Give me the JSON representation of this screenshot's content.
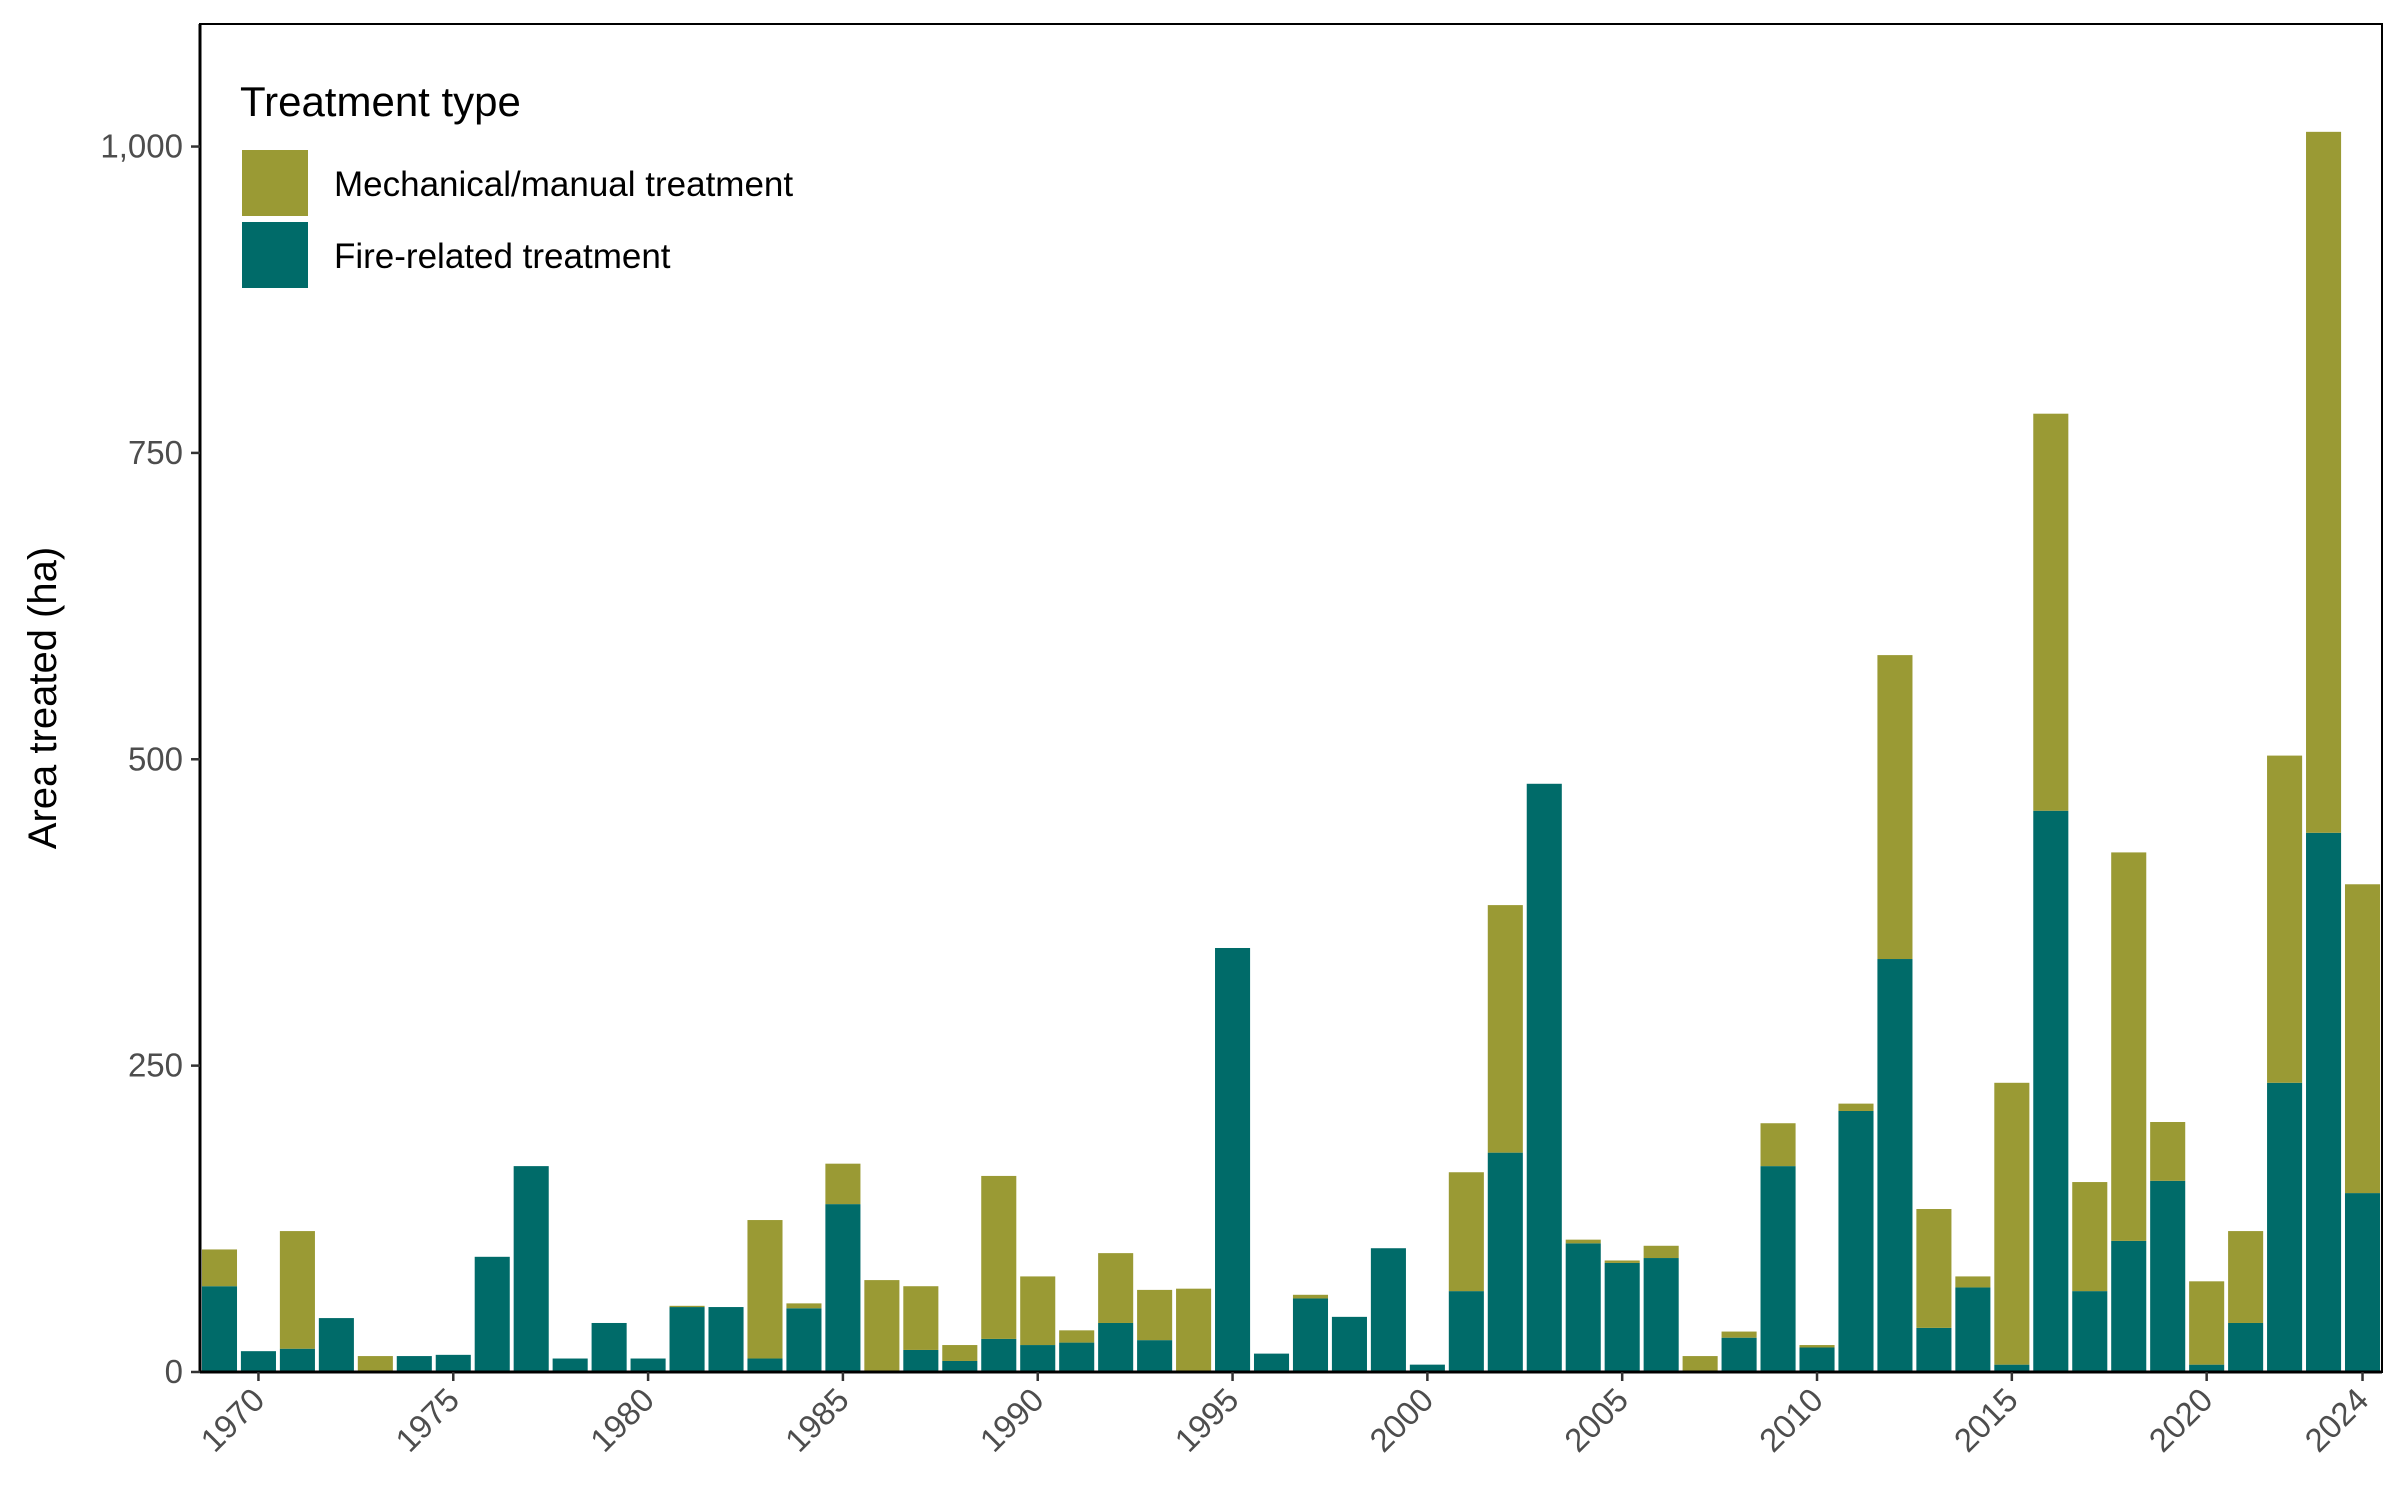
{
  "chart_data": {
    "type": "bar",
    "stacked": true,
    "title": "",
    "xlabel": "",
    "ylabel": "Area treated (ha)",
    "ylim": [
      0,
      1100
    ],
    "xlim": [
      1968.5,
      2024.5
    ],
    "y_ticks": [
      0,
      250,
      500,
      750,
      1000
    ],
    "y_tick_labels": [
      "0",
      "250",
      "500",
      "750",
      "1,000"
    ],
    "x_ticks": [
      1970,
      1975,
      1980,
      1985,
      1990,
      1995,
      2000,
      2005,
      2010,
      2015,
      2020,
      2024
    ],
    "x_tick_labels": [
      "1970",
      "1975",
      "1980",
      "1985",
      "1990",
      "1995",
      "2000",
      "2005",
      "2010",
      "2015",
      "2020",
      "2024"
    ],
    "grid": false,
    "legend": {
      "title": "Treatment type",
      "placement": "top-left",
      "entries": [
        "Mechanical/manual treatment",
        "Fire-related treatment"
      ]
    },
    "years": [
      1969,
      1970,
      1971,
      1972,
      1973,
      1974,
      1975,
      1976,
      1977,
      1978,
      1979,
      1980,
      1981,
      1982,
      1983,
      1984,
      1985,
      1986,
      1987,
      1988,
      1989,
      1990,
      1991,
      1992,
      1993,
      1994,
      1995,
      1996,
      1997,
      1998,
      1999,
      2000,
      2001,
      2002,
      2003,
      2004,
      2005,
      2006,
      2007,
      2008,
      2009,
      2010,
      2011,
      2012,
      2013,
      2014,
      2015,
      2016,
      2017,
      2018,
      2019,
      2020,
      2021,
      2022,
      2023,
      2024
    ],
    "series": [
      {
        "name": "Fire-related treatment",
        "color": "#006b69",
        "values": [
          70,
          17,
          19,
          44,
          0,
          13,
          14,
          94,
          168,
          11,
          40,
          11,
          53,
          53,
          11,
          52,
          137,
          0,
          18,
          9,
          27,
          22,
          24,
          40,
          26,
          0,
          346,
          15,
          60,
          45,
          101,
          6,
          66,
          179,
          480,
          105,
          89,
          93,
          0,
          28,
          168,
          20,
          213,
          337,
          36,
          69,
          6,
          458,
          66,
          107,
          156,
          6,
          40,
          236,
          440,
          146
        ]
      },
      {
        "name": "Mechanical/manual treatment",
        "color": "#9a9a34",
        "values": [
          30,
          0,
          96,
          0,
          13,
          0,
          0,
          0,
          0,
          0,
          0,
          0,
          1,
          0,
          113,
          4,
          33,
          75,
          52,
          13,
          133,
          56,
          10,
          57,
          41,
          68,
          0,
          0,
          3,
          0,
          0,
          0,
          97,
          202,
          0,
          3,
          2,
          10,
          13,
          5,
          35,
          2,
          6,
          248,
          97,
          9,
          230,
          324,
          89,
          317,
          48,
          68,
          75,
          267,
          572,
          252
        ]
      }
    ]
  }
}
